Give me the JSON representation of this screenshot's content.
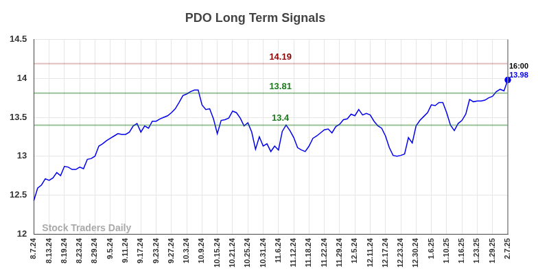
{
  "chart_data": {
    "type": "line",
    "title": "PDO Long Term Signals",
    "categories": [
      "8.7.24",
      null,
      null,
      null,
      "8.13.24",
      null,
      null,
      null,
      "8.19.24",
      null,
      null,
      null,
      "8.23.24",
      null,
      null,
      null,
      "8.29.24",
      null,
      null,
      null,
      "9.5.24",
      null,
      null,
      null,
      "9.11.24",
      null,
      null,
      null,
      "9.17.24",
      null,
      null,
      null,
      "9.23.24",
      null,
      null,
      null,
      "9.27.24",
      null,
      null,
      null,
      "10.3.24",
      null,
      null,
      null,
      "10.9.24",
      null,
      null,
      null,
      "10.15.24",
      null,
      null,
      null,
      "10.21.24",
      null,
      null,
      null,
      "10.25.24",
      null,
      null,
      null,
      "10.31.24",
      null,
      null,
      null,
      "11.6.24",
      null,
      null,
      null,
      "11.12.24",
      null,
      null,
      null,
      "11.18.24",
      null,
      null,
      null,
      "11.22.24",
      null,
      null,
      null,
      "11.29.24",
      null,
      null,
      null,
      "12.5.24",
      null,
      null,
      null,
      "12.11.24",
      null,
      null,
      null,
      "12.17.24",
      null,
      null,
      null,
      "12.23.24",
      null,
      null,
      null,
      "12.30.24",
      null,
      null,
      null,
      "1.6.25",
      null,
      null,
      null,
      "1.10.25",
      null,
      null,
      null,
      "1.16.25",
      null,
      null,
      null,
      "1.23.25",
      null,
      null,
      null,
      "1.29.25",
      null,
      null,
      null,
      "2.7.25"
    ],
    "values": [
      12.43,
      12.59,
      12.63,
      12.71,
      12.69,
      12.72,
      12.79,
      12.75,
      12.87,
      12.86,
      12.83,
      12.83,
      12.86,
      12.84,
      12.96,
      12.97,
      13.0,
      13.13,
      13.16,
      13.2,
      13.23,
      13.26,
      13.29,
      13.28,
      13.28,
      13.31,
      13.39,
      13.42,
      13.31,
      13.39,
      13.36,
      13.45,
      13.45,
      13.48,
      13.5,
      13.52,
      13.56,
      13.61,
      13.69,
      13.78,
      13.8,
      13.83,
      13.85,
      13.85,
      13.66,
      13.6,
      13.61,
      13.48,
      13.29,
      13.46,
      13.47,
      13.49,
      13.58,
      13.56,
      13.49,
      13.39,
      13.43,
      13.31,
      13.09,
      13.25,
      13.13,
      13.16,
      13.06,
      13.13,
      13.08,
      13.32,
      13.4,
      13.33,
      13.24,
      13.11,
      13.08,
      13.06,
      13.13,
      13.23,
      13.26,
      13.3,
      13.34,
      13.35,
      13.3,
      13.38,
      13.41,
      13.47,
      13.48,
      13.54,
      13.52,
      13.6,
      13.53,
      13.55,
      13.53,
      13.45,
      13.39,
      13.36,
      13.26,
      13.11,
      13.01,
      13.0,
      13.01,
      13.03,
      13.24,
      13.17,
      13.39,
      13.46,
      13.51,
      13.56,
      13.66,
      13.65,
      13.69,
      13.69,
      13.56,
      13.4,
      13.33,
      13.42,
      13.46,
      13.54,
      13.73,
      13.7,
      13.71,
      13.71,
      13.72,
      13.75,
      13.77,
      13.83,
      13.86,
      13.84,
      13.98
    ],
    "color": "#0000ee",
    "ylim": [
      12,
      14.5
    ],
    "yticks": [
      12,
      12.5,
      13,
      13.5,
      14,
      14.5
    ],
    "grid": true,
    "reference_lines": [
      {
        "value": 14.19,
        "label": "14.19",
        "color": "#8b0000"
      },
      {
        "value": 13.81,
        "label": "13.81",
        "color": "#1a7a1a"
      },
      {
        "value": 13.4,
        "label": "13.4",
        "color": "#1a7a1a"
      }
    ],
    "annotations": [
      {
        "text": "16:00"
      }
    ],
    "watermark": "Stock Traders Daily"
  }
}
